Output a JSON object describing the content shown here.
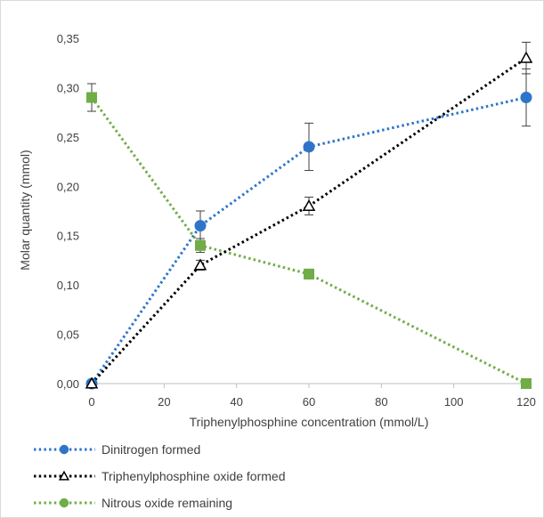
{
  "chart_data": {
    "type": "line",
    "title": "",
    "xlabel": "Triphenylphosphine concentration (mmol/L)",
    "ylabel": "Molar quantity (mmol)",
    "xlim": [
      0,
      120
    ],
    "ylim": [
      0,
      0.35
    ],
    "x_ticks": [
      "0",
      "20",
      "40",
      "60",
      "80",
      "100",
      "120"
    ],
    "y_ticks": [
      "0,00",
      "0,05",
      "0,10",
      "0,15",
      "0,20",
      "0,25",
      "0,30",
      "0,35"
    ],
    "grid": false,
    "legend_position": "bottom-left",
    "series": [
      {
        "name": "Dinitrogen formed",
        "color": "#2e75c9",
        "line_style": "dotted",
        "marker": "circle",
        "x": [
          0,
          30,
          60,
          120
        ],
        "y": [
          0.0,
          0.16,
          0.24,
          0.29
        ],
        "error": [
          0.0,
          0.015,
          0.024,
          0.029
        ]
      },
      {
        "name": "Triphenylphosphine oxide formed",
        "color": "#000000",
        "line_style": "dotted",
        "marker": "triangle",
        "x": [
          0,
          30,
          60,
          120
        ],
        "y": [
          0.0,
          0.12,
          0.18,
          0.33
        ],
        "error": [
          0.0,
          0.005,
          0.009,
          0.016
        ]
      },
      {
        "name": "Nitrous oxide remaining",
        "color": "#70ad47",
        "line_style": "dotted",
        "marker": "square",
        "legend_marker": "circle",
        "x": [
          0,
          30,
          60,
          120
        ],
        "y": [
          0.29,
          0.14,
          0.111,
          0.0
        ],
        "error": [
          0.014,
          0.007,
          0.005,
          0.0
        ]
      }
    ]
  }
}
